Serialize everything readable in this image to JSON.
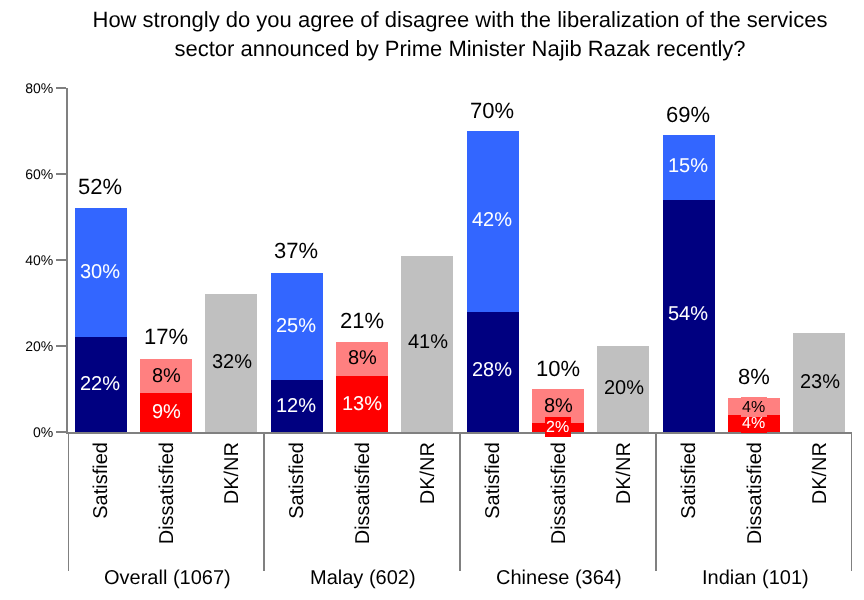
{
  "chart_data": {
    "type": "bar",
    "stacked": true,
    "title": "How strongly do you agree of disagree with the liberalization of the services sector announced by Prime Minister Najib Razak recently?",
    "categories": [
      "Satisfied",
      "Dissatisfied",
      "DK/NR",
      "Satisfied",
      "Dissatisfied",
      "DK/NR",
      "Satisfied",
      "Dissatisfied",
      "DK/NR",
      "Satisfied",
      "Dissatisfied",
      "DK/NR"
    ],
    "series": [
      {
        "color": "#000080",
        "values": [
          22,
          null,
          null,
          12,
          null,
          null,
          28,
          null,
          null,
          54,
          null,
          null
        ],
        "value_labels": [
          "22%",
          null,
          null,
          "12%",
          null,
          null,
          "28%",
          null,
          null,
          "54%",
          null,
          null
        ]
      },
      {
        "color": "#3366ff",
        "values": [
          30,
          null,
          null,
          25,
          null,
          null,
          42,
          null,
          null,
          15,
          null,
          null
        ],
        "value_labels": [
          "30%",
          null,
          null,
          "25%",
          null,
          null,
          "42%",
          null,
          null,
          "15%",
          null,
          null
        ]
      },
      {
        "color": "#ff0000",
        "values": [
          null,
          9,
          null,
          null,
          13,
          null,
          null,
          2,
          null,
          null,
          4,
          null
        ],
        "value_labels": [
          null,
          "9%",
          null,
          null,
          "13%",
          null,
          null,
          "2%",
          null,
          null,
          "4%",
          null
        ]
      },
      {
        "color": "#ff8080",
        "values": [
          null,
          8,
          null,
          null,
          8,
          null,
          null,
          8,
          null,
          null,
          4,
          null
        ],
        "value_labels": [
          null,
          "8%",
          null,
          null,
          "8%",
          null,
          null,
          "8%",
          null,
          null,
          "4%",
          null
        ]
      },
      {
        "color": "#c0c0c0",
        "values": [
          null,
          null,
          32,
          null,
          null,
          41,
          null,
          null,
          20,
          null,
          null,
          23
        ],
        "value_labels": [
          null,
          null,
          "32%",
          null,
          null,
          "41%",
          null,
          null,
          "20%",
          null,
          null,
          "23%"
        ]
      }
    ],
    "totals": [
      "52%",
      "17%",
      null,
      "37%",
      "21%",
      null,
      "70%",
      "10%",
      null,
      "69%",
      "8%",
      null
    ],
    "annotations": [
      "Overall (1067)",
      "Malay (602)",
      "Chinese (364)",
      "Indian (101)"
    ],
    "ylim": [
      0,
      80
    ],
    "yticks": [
      {
        "value": 0,
        "label": "0%"
      },
      {
        "value": 20,
        "label": "20%"
      },
      {
        "value": 40,
        "label": "40%"
      },
      {
        "value": 60,
        "label": "60%"
      },
      {
        "value": 80,
        "label": "80%"
      }
    ]
  }
}
